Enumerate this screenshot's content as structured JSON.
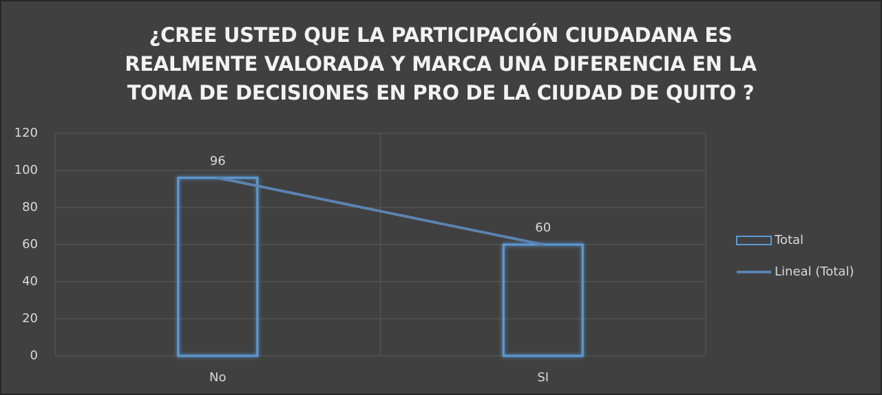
{
  "chart_data": {
    "type": "bar",
    "title": "¿CREE USTED QUE LA PARTICIPACIÓN CIUDADANA ES REALMENTE VALORADA Y MARCA UNA DIFERENCIA EN LA TOMA DE DECISIONES EN PRO DE LA CIUDAD DE QUITO ?",
    "categories": [
      "No",
      "SI"
    ],
    "series": [
      {
        "name": "Total",
        "type": "bar",
        "color": "#5b9bd5",
        "values": [
          96,
          60
        ]
      },
      {
        "name": "Lineal (Total)",
        "type": "line",
        "color": "#5b83b0",
        "values": [
          96,
          60
        ]
      }
    ],
    "ylim": [
      0,
      120
    ],
    "yticks": [
      0,
      20,
      40,
      60,
      80,
      100,
      120
    ],
    "grid": true,
    "legend": "right"
  }
}
